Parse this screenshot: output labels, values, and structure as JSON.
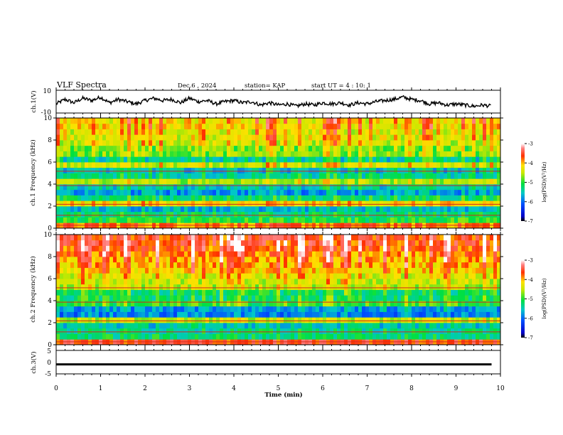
{
  "header": {
    "title": "VLF Spectra",
    "date": "Dec.6 , 2024",
    "station": "station= KAP",
    "start": "start UT = 4 : 10: 1"
  },
  "chart_data": [
    {
      "type": "line",
      "panel": "ch1-waveform",
      "ylabel": "ch.1(V)",
      "ylim": [
        -10,
        10
      ],
      "y_ticks": [
        "10",
        "-10"
      ],
      "xlim": [
        0,
        10
      ],
      "color": "#000000",
      "x": [
        0,
        0.2,
        0.4,
        0.6,
        0.8,
        1.0,
        1.2,
        1.4,
        1.6,
        1.8,
        2.0,
        2.2,
        2.4,
        2.6,
        2.8,
        3.0,
        3.2,
        3.4,
        3.6,
        3.8,
        4.0,
        4.2,
        4.4,
        4.6,
        4.8,
        5.0,
        5.2,
        5.4,
        5.6,
        5.8,
        6.0,
        6.2,
        6.4,
        6.6,
        6.8,
        7.0,
        7.2,
        7.4,
        7.6,
        7.8,
        8.0,
        8.2,
        8.4,
        8.6,
        8.8,
        9.0,
        9.2,
        9.4,
        9.6,
        9.8
      ],
      "y": [
        -2,
        2,
        -1,
        3,
        1,
        4,
        -1,
        2,
        0,
        -2,
        1,
        3,
        1,
        2,
        -1,
        3,
        0,
        1,
        -2,
        0,
        1,
        -1,
        0,
        -3,
        -1,
        -3,
        -2,
        -4,
        -2,
        -3,
        -1,
        -2,
        -1,
        -3,
        -1,
        -2,
        0,
        1,
        2,
        4,
        2,
        1,
        -2,
        -1,
        -3,
        -2,
        -3,
        -4,
        -3,
        -4
      ]
    },
    {
      "type": "heatmap",
      "panel": "ch1-spectrogram",
      "ylabel": "ch.1 Frequency (kHz)",
      "xlim": [
        0,
        10
      ],
      "ylim": [
        0,
        10
      ],
      "y_ticks": [
        "0",
        "2",
        "4",
        "6",
        "8",
        "10"
      ],
      "freq_bins_khz": [
        0,
        0.5,
        1,
        1.5,
        2,
        2.5,
        3,
        3.5,
        4,
        4.5,
        5,
        5.5,
        6,
        6.5,
        7,
        7.5,
        8,
        8.5,
        9,
        9.5
      ],
      "mean_level_log_psd": [
        -3.8,
        -5.0,
        -5.2,
        -5.6,
        -4.2,
        -5.2,
        -5.8,
        -5.5,
        -4.6,
        -5.4,
        -5.6,
        -4.5,
        -5.5,
        -4.8,
        -4.8,
        -4.5,
        -4.4,
        -4.4,
        -4.3,
        -4.3
      ],
      "colorbar": {
        "min": -7,
        "max": -3,
        "ticks": [
          "-3",
          "-4",
          "-5",
          "-6",
          "-7"
        ],
        "label": "log(PSD)(V²/Hz)"
      }
    },
    {
      "type": "heatmap",
      "panel": "ch2-spectrogram",
      "ylabel": "ch.2 Frequency (kHz)",
      "xlim": [
        0,
        10
      ],
      "ylim": [
        0,
        10
      ],
      "y_ticks": [
        "0",
        "2",
        "4",
        "6",
        "8",
        "10"
      ],
      "freq_bins_khz": [
        0,
        0.5,
        1,
        1.5,
        2,
        2.5,
        3,
        3.5,
        4,
        4.5,
        5,
        5.5,
        6,
        6.5,
        7,
        7.5,
        8,
        8.5,
        9,
        9.5
      ],
      "mean_level_log_psd": [
        -3.6,
        -5.2,
        -5.3,
        -5.5,
        -4.5,
        -5.9,
        -5.8,
        -5.0,
        -5.2,
        -5.2,
        -4.6,
        -4.5,
        -4.4,
        -4.2,
        -4.1,
        -4.0,
        -3.9,
        -3.8,
        -3.7,
        -3.7
      ],
      "colorbar": {
        "min": -7,
        "max": -3,
        "ticks": [
          "-3",
          "-4",
          "-5",
          "-6",
          "-7"
        ],
        "label": "log(PSD)(V²/Hz)"
      }
    },
    {
      "type": "line",
      "panel": "ch3-waveform",
      "ylabel": "ch.3(V)",
      "ylim": [
        -5,
        5
      ],
      "y_ticks": [
        "5",
        "0",
        "-5"
      ],
      "xlim": [
        0,
        10
      ],
      "x": [
        0,
        9.8
      ],
      "y_band": [
        -0.5,
        -1.4
      ],
      "color": "#000000"
    }
  ],
  "x_axis": {
    "label": "Time (min)",
    "ticks": [
      "0",
      "1",
      "2",
      "3",
      "4",
      "5",
      "6",
      "7",
      "8",
      "9",
      "10"
    ]
  }
}
